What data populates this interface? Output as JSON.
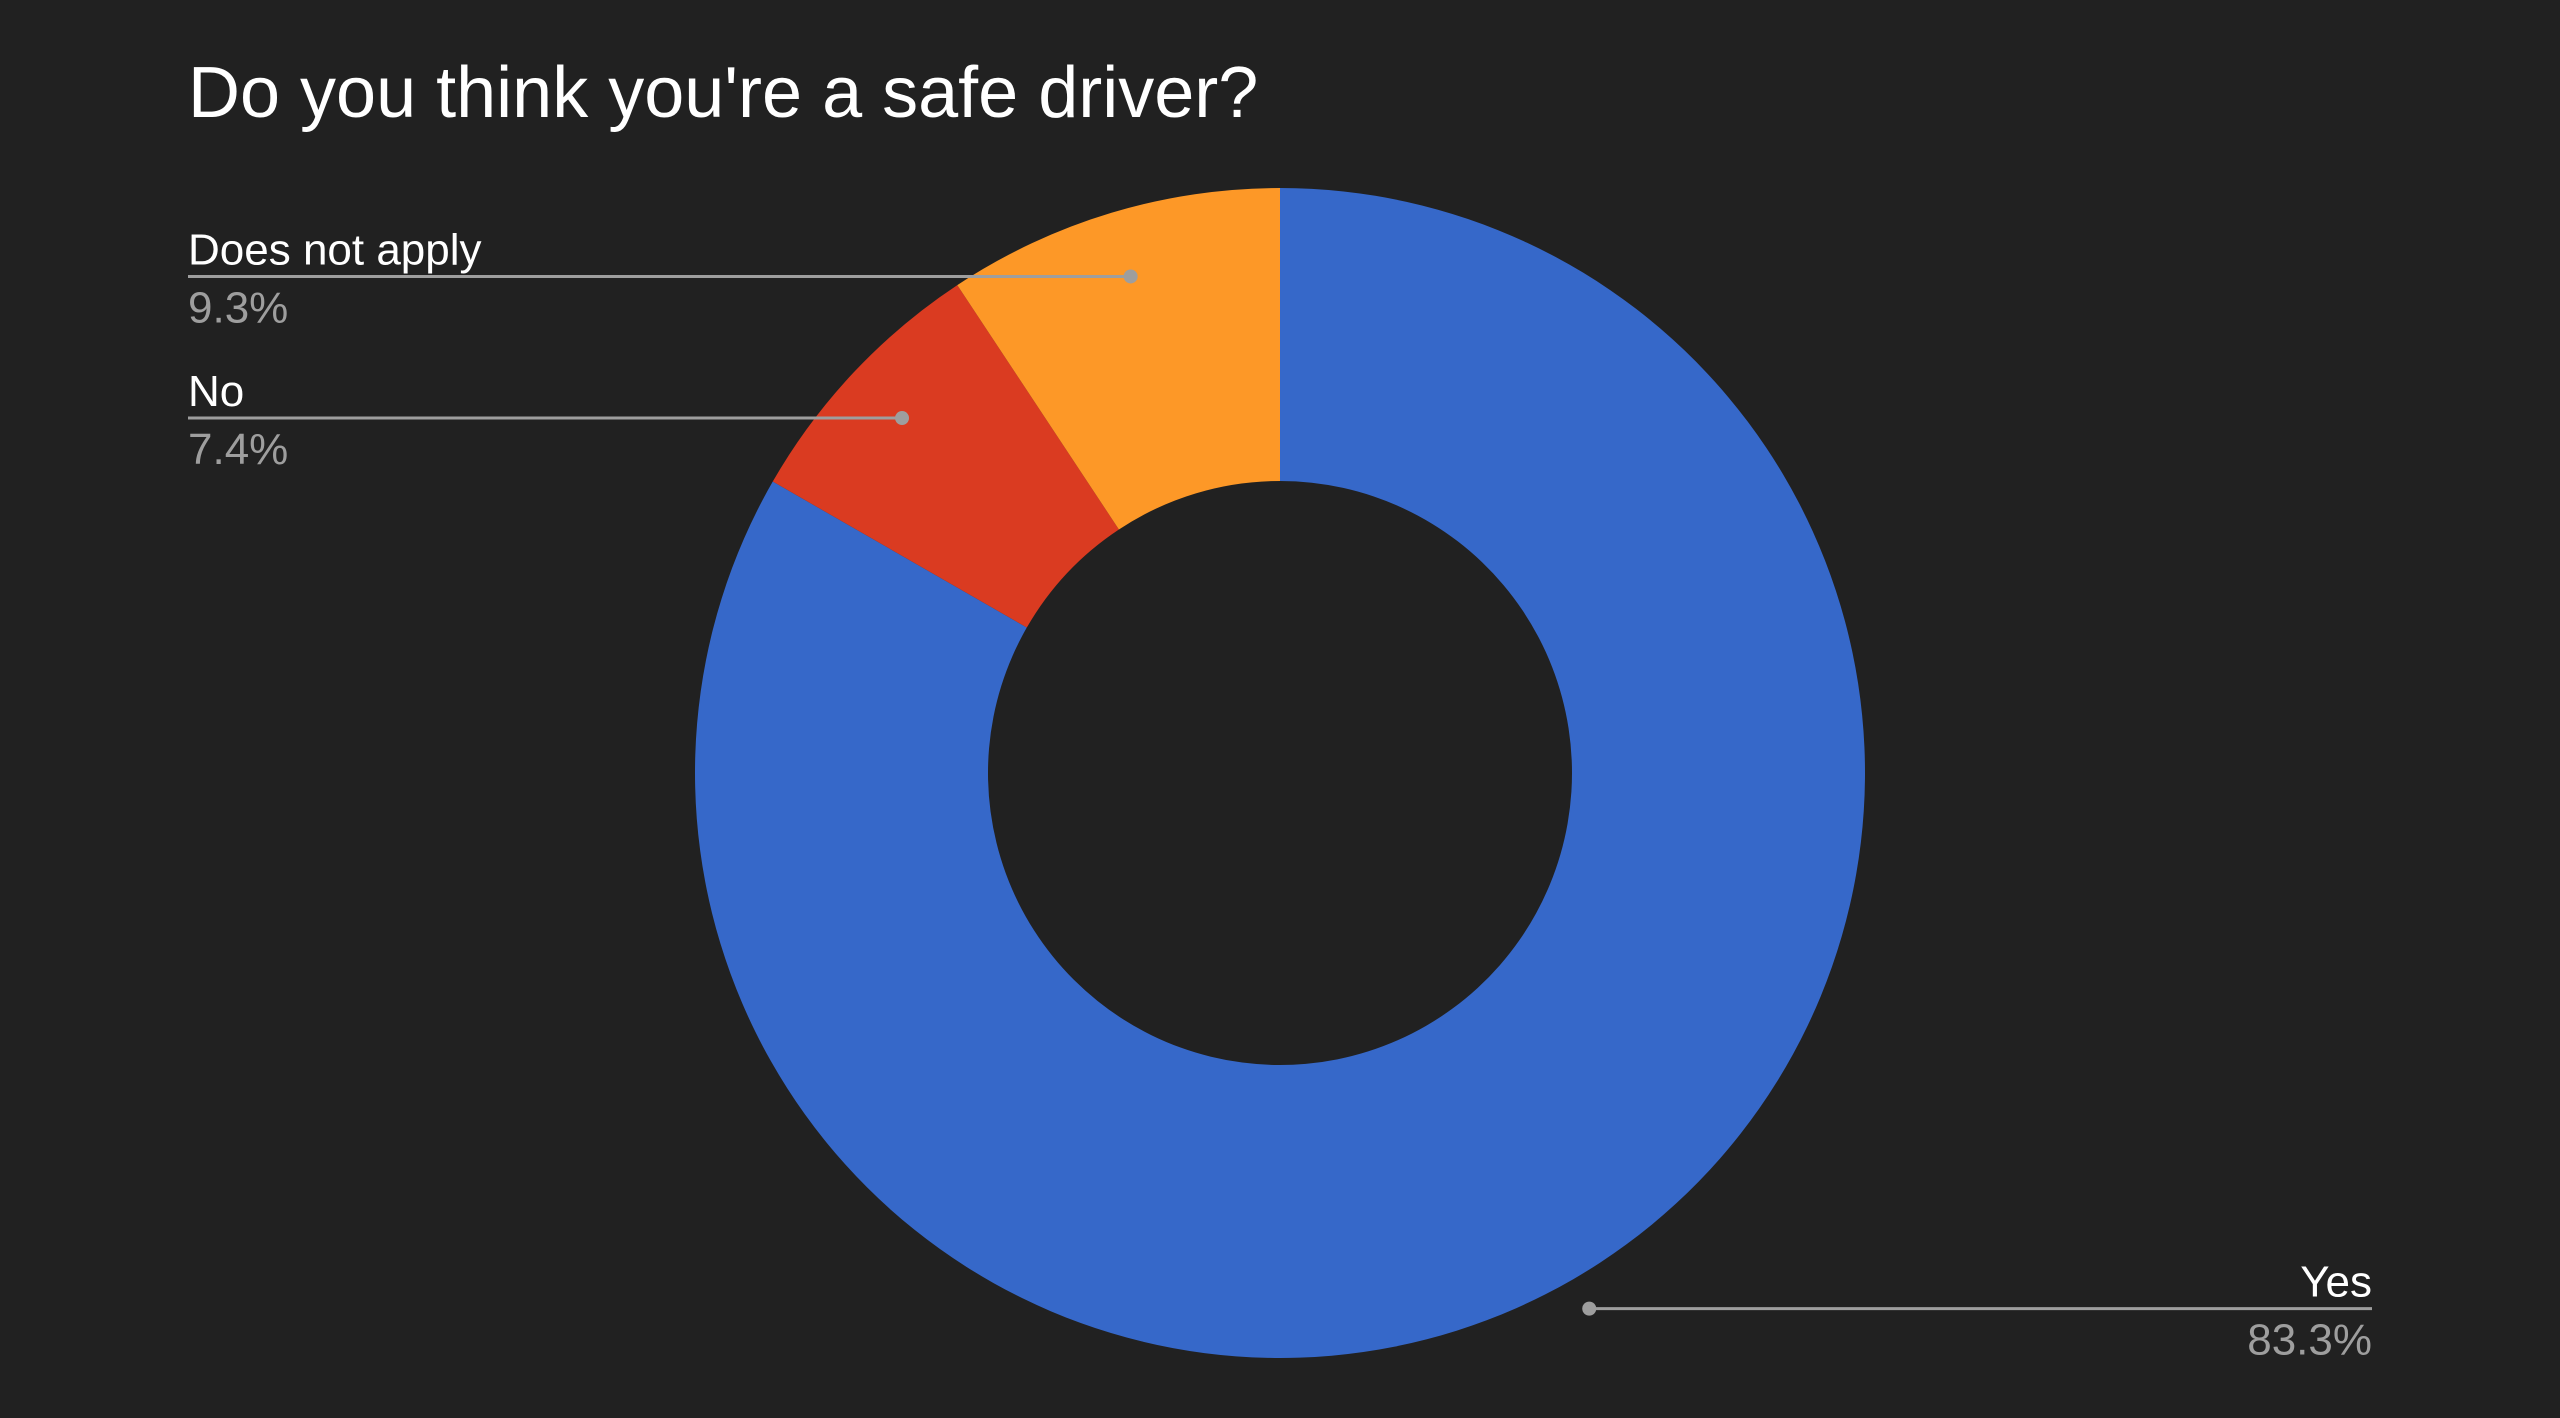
{
  "chart_data": {
    "type": "pie",
    "title": "Do you think you're a safe driver?",
    "donut": true,
    "slices": [
      {
        "label": "Yes",
        "value": 83.3,
        "value_label": "83.3%",
        "color": "#3668c9"
      },
      {
        "label": "No",
        "value": 7.4,
        "value_label": "7.4%",
        "color": "#da3b21"
      },
      {
        "label": "Does not apply",
        "value": 9.3,
        "value_label": "9.3%",
        "color": "#fd9827"
      }
    ],
    "start_angle_deg": 0,
    "direction": "clockwise",
    "background": "#212121",
    "leader_line_color": "#9e9e9e"
  }
}
